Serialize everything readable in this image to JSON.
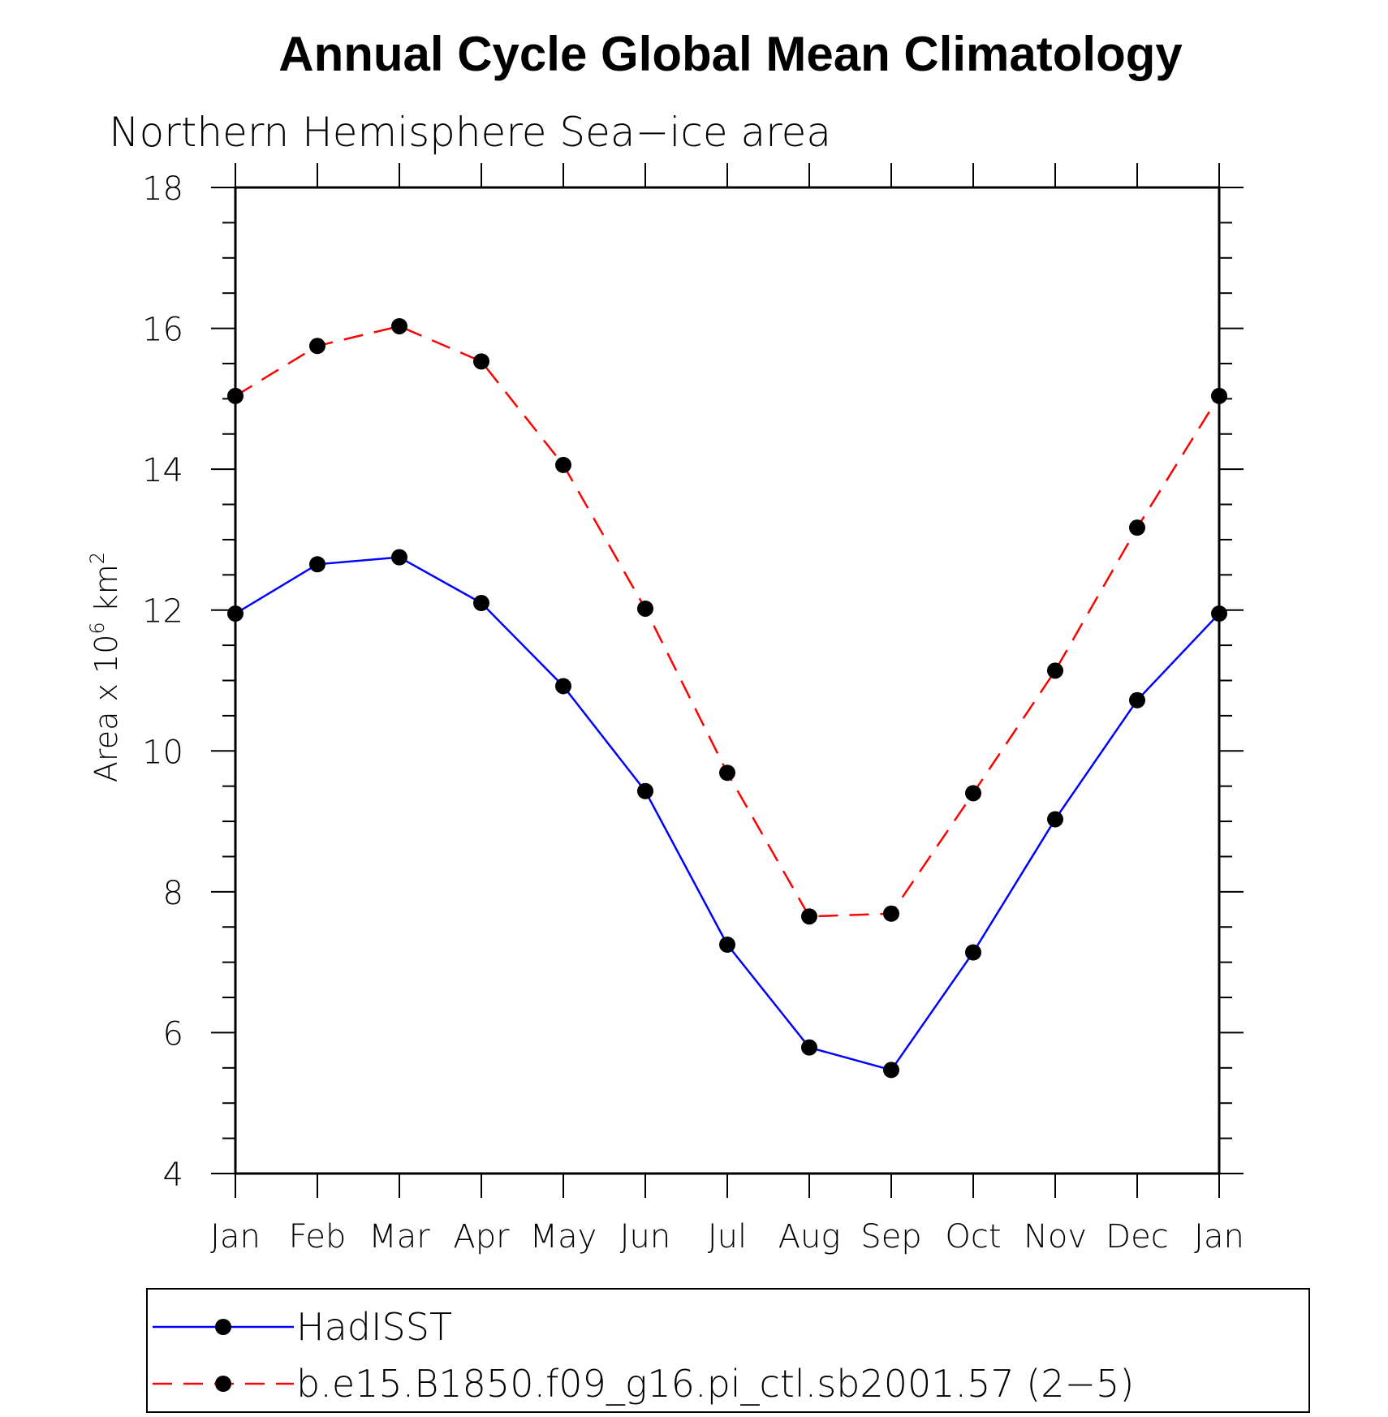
{
  "chart_data": {
    "type": "line",
    "title": "Annual Cycle Global Mean Climatology",
    "subtitle": "Northern Hemisphere Sea−ice area",
    "ylabel_base": "Area x 10",
    "ylabel_exp": "6",
    "ylabel_unit": "km",
    "ylabel_unit_exp": "2",
    "xlabel": "",
    "categories": [
      "Jan",
      "Feb",
      "Mar",
      "Apr",
      "May",
      "Jun",
      "Jul",
      "Aug",
      "Sep",
      "Oct",
      "Nov",
      "Dec",
      "Jan"
    ],
    "ylim": [
      4,
      18
    ],
    "yticks": [
      4,
      6,
      8,
      10,
      12,
      14,
      16,
      18
    ],
    "grid": false,
    "legend_position": "bottom",
    "series": [
      {
        "name": "HadISST",
        "color": "#0000ff",
        "style": "solid",
        "marker": "filled-circle",
        "values": [
          11.95,
          12.65,
          12.75,
          12.1,
          10.92,
          9.43,
          7.25,
          5.79,
          5.47,
          7.14,
          9.03,
          10.72,
          11.95
        ]
      },
      {
        "name": "b.e15.B1850.f09_g16.pi_ctl.sb2001.57 (2−5)",
        "color": "#ff0000",
        "style": "dashed",
        "marker": "filled-circle",
        "values": [
          15.04,
          15.75,
          16.03,
          15.53,
          14.06,
          12.02,
          9.69,
          7.65,
          7.69,
          9.4,
          11.14,
          13.17,
          15.04
        ]
      }
    ]
  }
}
